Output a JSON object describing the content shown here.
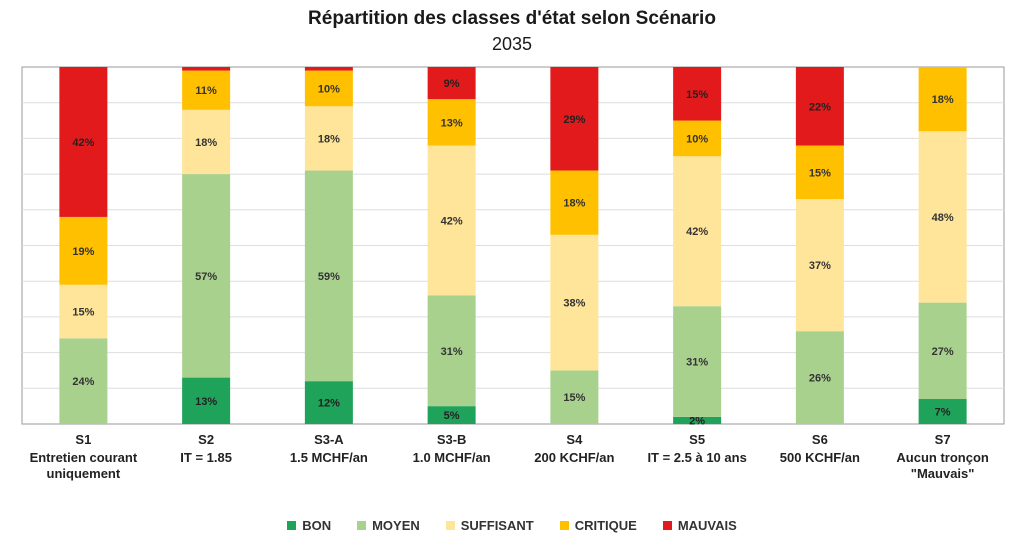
{
  "chart_data": {
    "type": "bar",
    "stacked": true,
    "title": "Répartition des classes d'état selon Scénario",
    "subtitle": "2035",
    "categories": [
      {
        "code": "S1",
        "desc": [
          "Entretien courant",
          "uniquement"
        ]
      },
      {
        "code": "S2",
        "desc": [
          "IT = 1.85"
        ]
      },
      {
        "code": "S3-A",
        "desc": [
          "1.5 MCHF/an"
        ]
      },
      {
        "code": "S3-B",
        "desc": [
          "1.0 MCHF/an"
        ]
      },
      {
        "code": "S4",
        "desc": [
          "200 KCHF/an"
        ]
      },
      {
        "code": "S5",
        "desc": [
          "IT = 2.5 à 10 ans"
        ]
      },
      {
        "code": "S6",
        "desc": [
          "500 KCHF/an"
        ]
      },
      {
        "code": "S7",
        "desc": [
          "Aucun tronçon",
          "\"Mauvais\""
        ]
      }
    ],
    "series": [
      {
        "name": "BON",
        "color": "#1fa35a",
        "values": [
          0,
          13,
          12,
          5,
          0,
          2,
          0,
          7
        ],
        "labels": [
          "",
          "13%",
          "12%",
          "5%",
          "",
          "2%",
          "",
          "7%"
        ]
      },
      {
        "name": "MOYEN",
        "color": "#a9d18e",
        "values": [
          24,
          57,
          59,
          31,
          15,
          31,
          26,
          27
        ],
        "labels": [
          "24%",
          "57%",
          "59%",
          "31%",
          "15%",
          "31%",
          "26%",
          "27%"
        ]
      },
      {
        "name": "SUFFISANT",
        "color": "#ffe599",
        "values": [
          15,
          18,
          18,
          42,
          38,
          42,
          37,
          48
        ],
        "labels": [
          "15%",
          "18%",
          "18%",
          "42%",
          "38%",
          "42%",
          "37%",
          "48%"
        ]
      },
      {
        "name": "CRITIQUE",
        "color": "#ffc000",
        "values": [
          19,
          11,
          10,
          13,
          18,
          10,
          15,
          18
        ],
        "labels": [
          "19%",
          "11%",
          "10%",
          "13%",
          "18%",
          "10%",
          "15%",
          "18%"
        ]
      },
      {
        "name": "MAUVAIS",
        "color": "#e31a1c",
        "values": [
          42,
          1,
          1,
          9,
          29,
          15,
          22,
          0
        ],
        "labels": [
          "42%",
          "",
          "",
          "9%",
          "29%",
          "15%",
          "22%",
          ""
        ]
      }
    ],
    "ylim": [
      0,
      100
    ],
    "grid": true,
    "legend_position": "bottom"
  }
}
